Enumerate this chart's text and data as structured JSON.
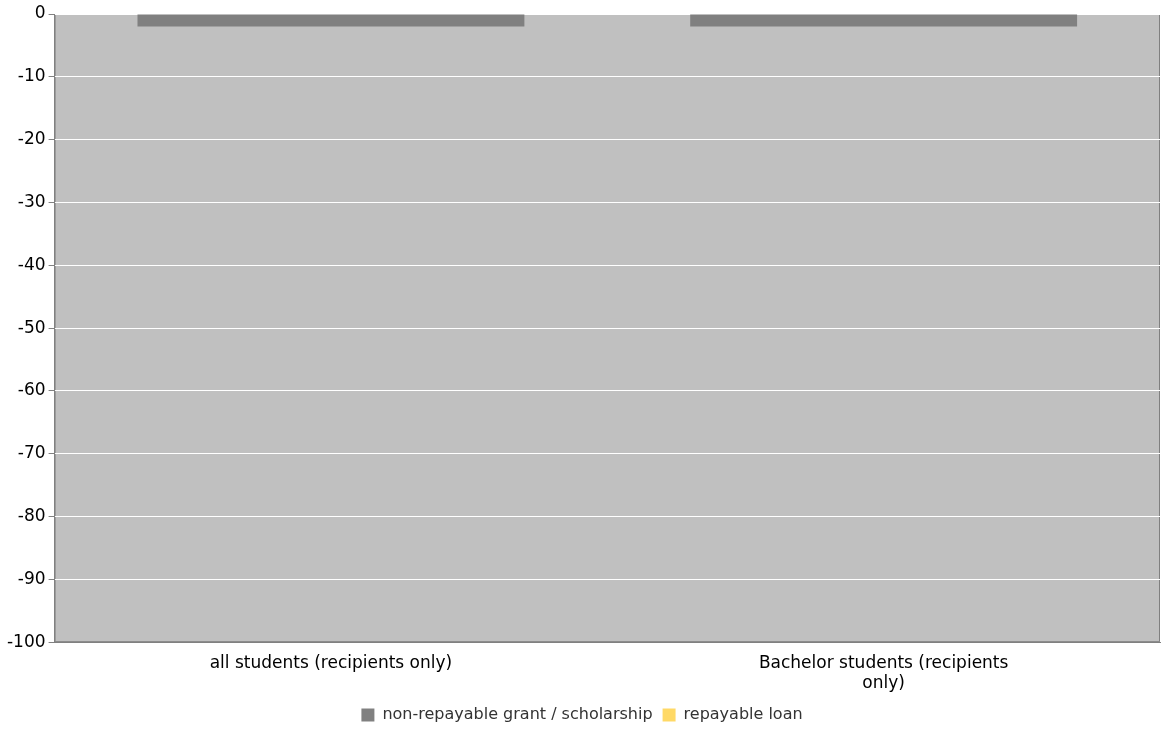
{
  "chart_data": {
    "type": "bar",
    "categories": [
      "all students (recipients only)",
      "Bachelor students (recipients only)"
    ],
    "series": [
      {
        "name": "non-repayable grant / scholarship",
        "color": "#808080",
        "values": [
          -2,
          -2
        ]
      },
      {
        "name": "repayable loan",
        "color": "#ffd966",
        "values": [
          null,
          null
        ]
      }
    ],
    "ylim": [
      -100,
      0
    ],
    "yticks": [
      -100,
      -90,
      -80,
      -70,
      -60,
      -50,
      -40,
      -30,
      -20,
      -10,
      0
    ],
    "grid": "y",
    "legend": "bottom"
  }
}
